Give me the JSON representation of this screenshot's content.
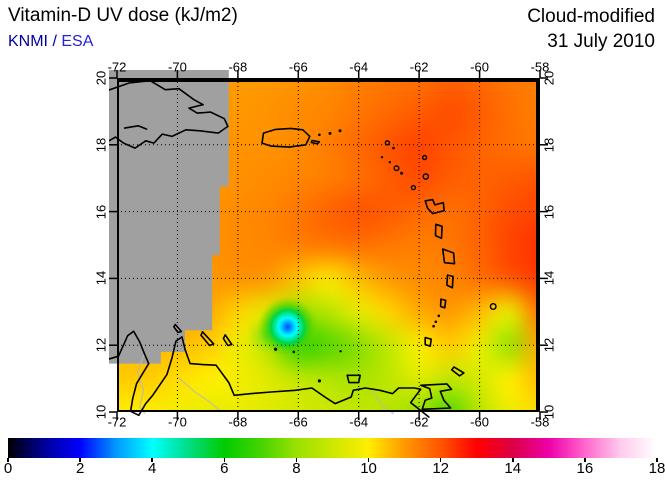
{
  "header": {
    "title": "Vitamin-D UV dose (kJ/m2)",
    "org_primary": "KNMI",
    "org_separator": " / ",
    "org_secondary": "ESA",
    "mode": "Cloud-modified",
    "date": "31 July 2010"
  },
  "colors": {
    "org_primary": "#0000A0",
    "org_secondary": "#2222E0",
    "nodata_gray": "#A0A0A0",
    "coastline": "#000000",
    "faint_border": "#B8B8B8"
  },
  "map": {
    "lon_ticks": [
      "-72",
      "-70",
      "-68",
      "-66",
      "-64",
      "-62",
      "-60",
      "-58"
    ],
    "lat_ticks": [
      "20",
      "18",
      "16",
      "14",
      "12",
      "10"
    ]
  },
  "chart_data": {
    "type": "heatmap",
    "title": "Vitamin-D UV dose (kJ/m2)",
    "mode": "Cloud-modified",
    "date": "31 July 2010",
    "organizations": [
      "KNMI",
      "ESA"
    ],
    "lon_range": [
      -72,
      -58
    ],
    "lat_range": [
      10,
      20
    ],
    "grid_lons": [
      -72,
      -71,
      -70,
      -69,
      -68,
      -67,
      -66,
      -65,
      -64,
      -63,
      -62,
      -61,
      -60,
      -59,
      -58
    ],
    "grid_lats": [
      20,
      19,
      18,
      17,
      16,
      15,
      14,
      13,
      12,
      11,
      10
    ],
    "values": [
      [
        11.0,
        11.0,
        11.0,
        11.0,
        11.0,
        11.0,
        11.1,
        11.2,
        11.4,
        11.5,
        11.6,
        11.8,
        11.7,
        11.5,
        11.4
      ],
      [
        11.0,
        11.0,
        11.0,
        11.0,
        11.0,
        11.1,
        11.2,
        11.3,
        11.5,
        11.7,
        11.9,
        12.1,
        11.9,
        11.6,
        11.4
      ],
      [
        11.0,
        11.0,
        11.0,
        11.0,
        11.1,
        11.1,
        11.2,
        11.4,
        11.7,
        12.0,
        12.2,
        12.0,
        11.8,
        11.6,
        11.5
      ],
      [
        11.0,
        11.0,
        11.0,
        11.0,
        11.1,
        11.2,
        11.3,
        11.4,
        11.6,
        11.9,
        12.1,
        11.9,
        11.8,
        11.9,
        12.0
      ],
      [
        11.0,
        11.0,
        11.0,
        11.1,
        11.2,
        11.3,
        11.5,
        11.8,
        12.0,
        11.9,
        11.7,
        11.6,
        11.8,
        12.1,
        12.2
      ],
      [
        11.0,
        11.0,
        11.0,
        11.1,
        11.2,
        11.3,
        11.4,
        11.5,
        11.6,
        11.5,
        11.4,
        11.5,
        11.8,
        12.2,
        12.4
      ],
      [
        11.0,
        11.0,
        11.0,
        11.0,
        11.1,
        11.0,
        10.5,
        10.1,
        10.6,
        11.0,
        11.2,
        11.3,
        11.6,
        12.0,
        12.3
      ],
      [
        10.8,
        10.8,
        10.8,
        10.8,
        10.3,
        9.4,
        8.2,
        8.6,
        9.5,
        10.3,
        10.8,
        11.0,
        10.6,
        9.6,
        11.6
      ],
      [
        10.6,
        10.6,
        10.6,
        10.4,
        9.7,
        8.6,
        6.8,
        7.2,
        7.8,
        8.8,
        9.9,
        10.4,
        9.6,
        8.0,
        10.8
      ],
      [
        10.4,
        10.4,
        10.2,
        10.0,
        9.8,
        9.4,
        8.8,
        8.5,
        8.3,
        8.7,
        9.4,
        8.8,
        9.2,
        10.0,
        10.6
      ],
      [
        10.0,
        10.0,
        9.8,
        9.6,
        9.6,
        9.4,
        9.2,
        9.0,
        8.8,
        8.6,
        8.0,
        7.2,
        8.6,
        9.6,
        10.2
      ]
    ],
    "low_spot": {
      "lon": -66.35,
      "lat": 12.55,
      "min_value": 2.5,
      "radius_deg": 1.0
    },
    "low_spot_halo": {
      "lon": -67.05,
      "lat": 12.3,
      "value": 5.5,
      "radius_deg": 0.65,
      "alpha": 0.45
    },
    "nodata_polygon": [
      [
        -72.4,
        20.4
      ],
      [
        -68.3,
        20.4
      ],
      [
        -68.3,
        16.75
      ],
      [
        -68.6,
        16.75
      ],
      [
        -68.6,
        14.7
      ],
      [
        -68.85,
        14.7
      ],
      [
        -68.85,
        12.45
      ],
      [
        -69.75,
        12.45
      ],
      [
        -69.75,
        11.8
      ],
      [
        -70.55,
        11.8
      ],
      [
        -70.55,
        11.45
      ],
      [
        -72.4,
        11.45
      ]
    ],
    "colorbar": {
      "min": 0,
      "max": 18,
      "unit": "kJ/m2",
      "tick_labels": [
        "0",
        "2",
        "4",
        "6",
        "8",
        "10",
        "12",
        "14",
        "16",
        "18"
      ],
      "stops": [
        [
          0,
          "#000000"
        ],
        [
          1,
          "#000099"
        ],
        [
          2,
          "#0000ff"
        ],
        [
          3,
          "#0099ff"
        ],
        [
          4,
          "#00ffff"
        ],
        [
          5,
          "#00dd88"
        ],
        [
          6,
          "#00cc00"
        ],
        [
          7,
          "#44d400"
        ],
        [
          8,
          "#99e100"
        ],
        [
          9,
          "#cce800"
        ],
        [
          10,
          "#ffee00"
        ],
        [
          11,
          "#ff9900"
        ],
        [
          12,
          "#ff5500"
        ],
        [
          13,
          "#ff0000"
        ],
        [
          14,
          "#dd0044"
        ],
        [
          15,
          "#ee00aa"
        ],
        [
          16,
          "#ff66cc"
        ],
        [
          17,
          "#ffccee"
        ],
        [
          18,
          "#ffffff"
        ]
      ]
    }
  },
  "geo": {
    "coastlines": [
      {
        "name": "hispaniola",
        "closed": false,
        "points": [
          [
            -72.4,
            19.6
          ],
          [
            -71.6,
            19.85
          ],
          [
            -70.9,
            19.92
          ],
          [
            -70.4,
            19.65
          ],
          [
            -69.95,
            19.68
          ],
          [
            -69.45,
            19.35
          ],
          [
            -69.15,
            19.2
          ],
          [
            -69.62,
            19.1
          ],
          [
            -69.35,
            18.95
          ],
          [
            -68.9,
            18.98
          ],
          [
            -68.45,
            18.78
          ],
          [
            -68.33,
            18.55
          ],
          [
            -68.65,
            18.35
          ],
          [
            -69.25,
            18.42
          ],
          [
            -69.72,
            18.45
          ],
          [
            -70.18,
            18.25
          ],
          [
            -70.5,
            18.32
          ],
          [
            -70.78,
            18.05
          ],
          [
            -71.05,
            18.12
          ],
          [
            -71.4,
            17.9
          ],
          [
            -71.78,
            18.05
          ],
          [
            -72.05,
            18.23
          ],
          [
            -72.4,
            18.05
          ]
        ]
      },
      {
        "name": "lake-enriquillo",
        "closed": false,
        "points": [
          [
            -71.75,
            18.5
          ],
          [
            -71.3,
            18.57
          ],
          [
            -71.02,
            18.47
          ]
        ]
      },
      {
        "name": "puerto-rico",
        "closed": true,
        "points": [
          [
            -67.15,
            18.35
          ],
          [
            -66.75,
            18.46
          ],
          [
            -66.25,
            18.49
          ],
          [
            -65.85,
            18.45
          ],
          [
            -65.62,
            18.25
          ],
          [
            -65.75,
            18.0
          ],
          [
            -66.3,
            17.93
          ],
          [
            -66.9,
            17.96
          ],
          [
            -67.2,
            18.05
          ]
        ]
      },
      {
        "name": "vieques",
        "closed": true,
        "points": [
          [
            -65.55,
            18.13
          ],
          [
            -65.3,
            18.09
          ],
          [
            -65.37,
            18.03
          ],
          [
            -65.57,
            18.07
          ]
        ]
      },
      {
        "name": "guadeloupe",
        "closed": true,
        "points": [
          [
            -61.8,
            16.32
          ],
          [
            -61.55,
            16.36
          ],
          [
            -61.48,
            16.2
          ],
          [
            -61.2,
            16.27
          ],
          [
            -61.17,
            16.03
          ],
          [
            -61.55,
            15.94
          ],
          [
            -61.72,
            16.1
          ]
        ]
      },
      {
        "name": "dominica",
        "closed": true,
        "points": [
          [
            -61.45,
            15.62
          ],
          [
            -61.24,
            15.56
          ],
          [
            -61.26,
            15.2
          ],
          [
            -61.46,
            15.28
          ]
        ]
      },
      {
        "name": "martinique",
        "closed": true,
        "points": [
          [
            -61.22,
            14.88
          ],
          [
            -60.86,
            14.76
          ],
          [
            -60.83,
            14.44
          ],
          [
            -61.16,
            14.47
          ]
        ]
      },
      {
        "name": "st-lucia",
        "closed": true,
        "points": [
          [
            -61.06,
            14.1
          ],
          [
            -60.88,
            14.06
          ],
          [
            -60.9,
            13.72
          ],
          [
            -61.08,
            13.8
          ]
        ]
      },
      {
        "name": "st-vincent",
        "closed": true,
        "points": [
          [
            -61.28,
            13.38
          ],
          [
            -61.12,
            13.34
          ],
          [
            -61.15,
            13.12
          ],
          [
            -61.29,
            13.16
          ]
        ]
      },
      {
        "name": "grenada",
        "closed": true,
        "points": [
          [
            -61.8,
            12.23
          ],
          [
            -61.6,
            12.18
          ],
          [
            -61.63,
            11.97
          ],
          [
            -61.8,
            12.02
          ]
        ]
      },
      {
        "name": "aruba",
        "closed": true,
        "points": [
          [
            -70.07,
            12.62
          ],
          [
            -69.87,
            12.41
          ],
          [
            -69.98,
            12.38
          ],
          [
            -70.12,
            12.55
          ]
        ]
      },
      {
        "name": "curacao",
        "closed": true,
        "points": [
          [
            -69.17,
            12.4
          ],
          [
            -68.8,
            12.04
          ],
          [
            -68.94,
            11.99
          ],
          [
            -69.22,
            12.3
          ]
        ]
      },
      {
        "name": "bonaire",
        "closed": true,
        "points": [
          [
            -68.42,
            12.31
          ],
          [
            -68.2,
            12.02
          ],
          [
            -68.33,
            11.99
          ],
          [
            -68.48,
            12.2
          ]
        ]
      },
      {
        "name": "margarita",
        "closed": true,
        "points": [
          [
            -64.38,
            11.1
          ],
          [
            -63.95,
            11.1
          ],
          [
            -64.0,
            10.88
          ],
          [
            -64.32,
            10.88
          ]
        ]
      },
      {
        "name": "tobago",
        "closed": true,
        "points": [
          [
            -60.85,
            11.35
          ],
          [
            -60.52,
            11.17
          ],
          [
            -60.66,
            11.08
          ],
          [
            -60.92,
            11.26
          ]
        ]
      },
      {
        "name": "trinidad",
        "closed": true,
        "points": [
          [
            -61.95,
            10.8
          ],
          [
            -61.08,
            10.84
          ],
          [
            -60.93,
            10.68
          ],
          [
            -61.3,
            10.62
          ],
          [
            -61.18,
            10.35
          ],
          [
            -60.96,
            10.12
          ],
          [
            -61.9,
            10.08
          ],
          [
            -61.8,
            10.35
          ],
          [
            -61.58,
            10.42
          ],
          [
            -61.65,
            10.7
          ]
        ]
      },
      {
        "name": "south-america-coast",
        "closed": false,
        "points": [
          [
            -72.4,
            11.55
          ],
          [
            -71.95,
            11.67
          ],
          [
            -71.65,
            12.28
          ],
          [
            -71.45,
            12.42
          ],
          [
            -71.25,
            12.1
          ],
          [
            -71.08,
            11.72
          ],
          [
            -70.95,
            11.45
          ],
          [
            -71.35,
            10.85
          ],
          [
            -71.48,
            10.4
          ],
          [
            -71.55,
            10.02
          ],
          [
            -71.28,
            9.9
          ],
          [
            -71.05,
            10.25
          ],
          [
            -70.82,
            10.5
          ],
          [
            -70.35,
            11.12
          ],
          [
            -70.18,
            11.62
          ],
          [
            -70.05,
            12.12
          ],
          [
            -69.85,
            12.25
          ],
          [
            -69.75,
            11.88
          ],
          [
            -69.58,
            11.45
          ],
          [
            -69.15,
            11.42
          ],
          [
            -68.72,
            11.4
          ],
          [
            -68.3,
            10.88
          ],
          [
            -68.12,
            10.5
          ],
          [
            -67.55,
            10.55
          ],
          [
            -66.9,
            10.6
          ],
          [
            -66.1,
            10.65
          ],
          [
            -65.55,
            10.72
          ],
          [
            -65.12,
            10.45
          ],
          [
            -64.78,
            10.25
          ],
          [
            -64.25,
            10.45
          ],
          [
            -64.18,
            10.65
          ],
          [
            -63.78,
            10.72
          ],
          [
            -63.3,
            10.65
          ],
          [
            -62.88,
            10.55
          ],
          [
            -62.68,
            10.72
          ],
          [
            -62.15,
            10.72
          ],
          [
            -61.95,
            10.68
          ],
          [
            -62.1,
            10.5
          ],
          [
            -62.28,
            10.28
          ],
          [
            -62.0,
            10.08
          ],
          [
            -61.68,
            9.85
          ]
        ]
      }
    ],
    "island_rings": [
      {
        "name": "st-martin",
        "lon": -63.05,
        "lat": 18.06,
        "r": 2.0
      },
      {
        "name": "barbuda",
        "lon": -61.82,
        "lat": 17.62,
        "r": 2.0
      },
      {
        "name": "antigua",
        "lon": -61.78,
        "lat": 17.05,
        "r": 2.6
      },
      {
        "name": "st-kitts",
        "lon": -62.75,
        "lat": 17.3,
        "r": 2.3
      },
      {
        "name": "montserrat",
        "lon": -62.19,
        "lat": 16.72,
        "r": 2.0
      },
      {
        "name": "barbados",
        "lon": -59.55,
        "lat": 13.16,
        "r": 2.8
      }
    ],
    "island_dots": [
      [
        -65.3,
        18.3,
        1.3
      ],
      [
        -64.95,
        18.34,
        1.5
      ],
      [
        -64.62,
        18.42,
        1.5
      ],
      [
        -62.85,
        17.9,
        1.3
      ],
      [
        -63.23,
        17.63,
        1.2
      ],
      [
        -62.97,
        17.48,
        1.2
      ],
      [
        -62.58,
        17.15,
        1.5
      ],
      [
        -61.35,
        12.88,
        1.3
      ],
      [
        -61.45,
        12.7,
        1.3
      ],
      [
        -61.52,
        12.57,
        1.3
      ],
      [
        -66.75,
        11.88,
        1.6
      ],
      [
        -66.15,
        11.8,
        1.3
      ],
      [
        -65.3,
        10.93,
        1.6
      ],
      [
        -64.6,
        11.82,
        1.2
      ]
    ],
    "faint_borders": [
      [
        [
          -71.12,
          11.7
        ],
        [
          -71.32,
          11.18
        ],
        [
          -71.12,
          10.65
        ],
        [
          -71.25,
          10.15
        ],
        [
          -71.08,
          9.95
        ]
      ],
      [
        [
          -70.0,
          11.05
        ],
        [
          -69.42,
          10.6
        ],
        [
          -68.9,
          10.28
        ],
        [
          -68.55,
          10.0
        ]
      ],
      [
        [
          -63.55,
          10.6
        ],
        [
          -63.2,
          10.18
        ],
        [
          -62.85,
          9.95
        ]
      ]
    ]
  }
}
